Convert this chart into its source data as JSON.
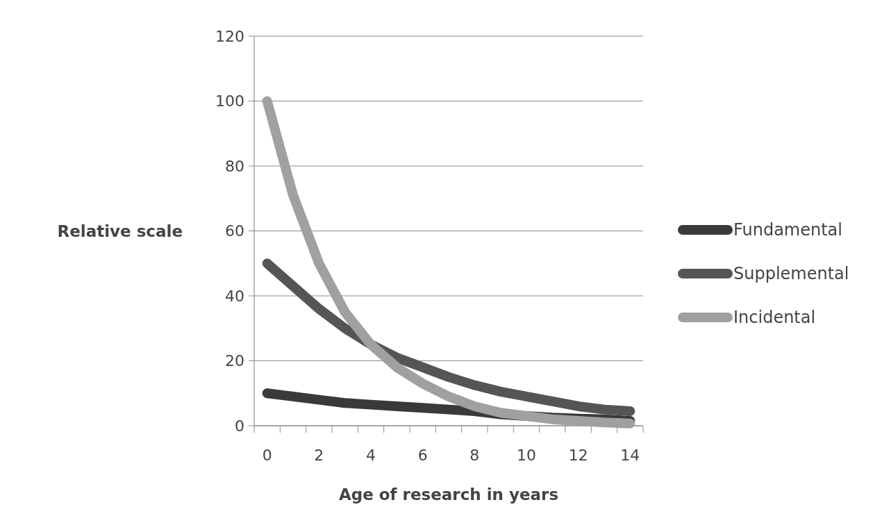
{
  "chart_data": {
    "type": "line",
    "xlabel": "Age of research in years",
    "ylabel": "Relative scale",
    "categories": [
      "0",
      null,
      "2",
      null,
      "4",
      null,
      "6",
      null,
      "8",
      null,
      "10",
      null,
      "12",
      null,
      "14"
    ],
    "ylim": [
      0,
      120
    ],
    "yticks": [
      0,
      20,
      40,
      60,
      80,
      100,
      120
    ],
    "grid": "y",
    "legend": "right",
    "line_style": "solid",
    "series": [
      {
        "name": "Fundamental",
        "color": "#3a3a3a",
        "values": [
          10,
          9,
          8,
          7,
          6.5,
          6,
          5.5,
          5,
          4.5,
          3.5,
          3,
          2.5,
          2.2,
          2,
          1.5
        ]
      },
      {
        "name": "Supplemental",
        "color": "#555555",
        "values": [
          50,
          43,
          36,
          30,
          25,
          21,
          18,
          15,
          12.5,
          10.5,
          9,
          7.5,
          6,
          5,
          4.5
        ]
      },
      {
        "name": "Incidental",
        "color": "#a0a0a0",
        "values": [
          100,
          71,
          50,
          35,
          25,
          18,
          13,
          9,
          6,
          4,
          3,
          2,
          1.5,
          1,
          0.7
        ]
      }
    ]
  }
}
